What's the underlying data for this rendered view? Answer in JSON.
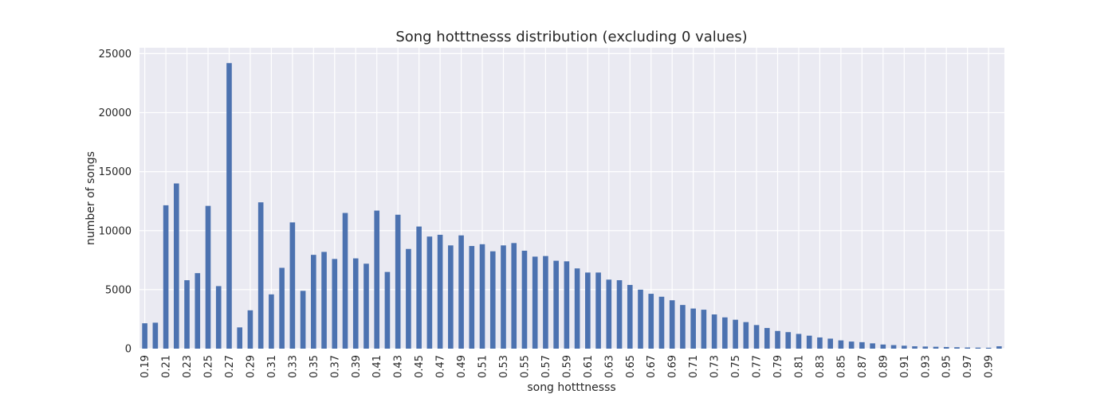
{
  "chart_data": {
    "type": "bar",
    "title": "Song hotttnesss distribution (excluding 0 values)",
    "xlabel": "song hotttnesss",
    "ylabel": "number of songs",
    "ylim": [
      0,
      25500
    ],
    "yticks": [
      0,
      5000,
      10000,
      15000,
      20000,
      25000
    ],
    "grid": true,
    "colors": {
      "bar": "#4c72b0",
      "plot_bg": "#eaeaf2",
      "grid": "#ffffff"
    },
    "categories": [
      "0.19",
      "0.20",
      "0.21",
      "0.22",
      "0.23",
      "0.24",
      "0.25",
      "0.26",
      "0.27",
      "0.28",
      "0.29",
      "0.30",
      "0.31",
      "0.32",
      "0.33",
      "0.34",
      "0.35",
      "0.36",
      "0.37",
      "0.38",
      "0.39",
      "0.40",
      "0.41",
      "0.42",
      "0.43",
      "0.44",
      "0.45",
      "0.46",
      "0.47",
      "0.48",
      "0.49",
      "0.50",
      "0.51",
      "0.52",
      "0.53",
      "0.54",
      "0.55",
      "0.56",
      "0.57",
      "0.58",
      "0.59",
      "0.60",
      "0.61",
      "0.62",
      "0.63",
      "0.64",
      "0.65",
      "0.66",
      "0.67",
      "0.68",
      "0.69",
      "0.70",
      "0.71",
      "0.72",
      "0.73",
      "0.74",
      "0.75",
      "0.76",
      "0.77",
      "0.78",
      "0.79",
      "0.80",
      "0.81",
      "0.82",
      "0.83",
      "0.84",
      "0.85",
      "0.86",
      "0.87",
      "0.88",
      "0.89",
      "0.90",
      "0.91",
      "0.92",
      "0.93",
      "0.94",
      "0.95",
      "0.96",
      "0.97",
      "0.98",
      "0.99",
      "1.00"
    ],
    "tick_labels": [
      "0.19",
      "0.21",
      "0.23",
      "0.25",
      "0.27",
      "0.29",
      "0.31",
      "0.33",
      "0.35",
      "0.37",
      "0.39",
      "0.41",
      "0.43",
      "0.45",
      "0.47",
      "0.49",
      "0.51",
      "0.53",
      "0.55",
      "0.57",
      "0.59",
      "0.61",
      "0.63",
      "0.65",
      "0.67",
      "0.69",
      "0.71",
      "0.73",
      "0.75",
      "0.77",
      "0.79",
      "0.81",
      "0.83",
      "0.85",
      "0.87",
      "0.89",
      "0.91",
      "0.93",
      "0.95",
      "0.97",
      "0.99"
    ],
    "values": [
      2150,
      2200,
      12150,
      14000,
      5800,
      6400,
      12100,
      5300,
      24200,
      1800,
      3250,
      12400,
      4600,
      6850,
      10700,
      4900,
      7950,
      8200,
      7600,
      11500,
      7650,
      7200,
      11700,
      6500,
      11350,
      8450,
      10350,
      9500,
      9650,
      8750,
      9600,
      8700,
      8850,
      8250,
      8750,
      8950,
      8300,
      7800,
      7850,
      7450,
      7400,
      6800,
      6450,
      6450,
      5850,
      5800,
      5400,
      5000,
      4650,
      4400,
      4100,
      3700,
      3400,
      3300,
      2900,
      2650,
      2450,
      2250,
      2000,
      1750,
      1500,
      1400,
      1250,
      1100,
      950,
      850,
      700,
      600,
      550,
      450,
      350,
      300,
      250,
      200,
      180,
      160,
      140,
      120,
      100,
      90,
      80,
      200
    ]
  }
}
